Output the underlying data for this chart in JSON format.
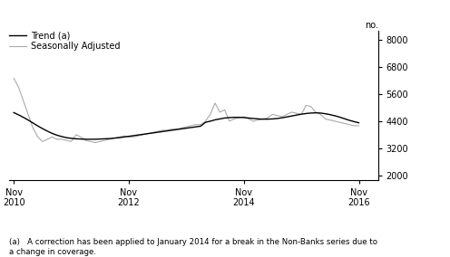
{
  "ylabel_right": "no.",
  "yticks": [
    2000,
    3200,
    4400,
    5600,
    6800,
    8000
  ],
  "ylim": [
    1800,
    8400
  ],
  "xtick_labels": [
    "Nov\n2010",
    "Nov\n2012",
    "Nov\n2014",
    "Nov\n2016"
  ],
  "xtick_positions": [
    0,
    24,
    48,
    72
  ],
  "xlim": [
    -1,
    76
  ],
  "footnote": "(a)   A correction has been applied to January 2014 for a break in the Non-Banks series due to\na change in coverage.",
  "legend_trend": "Trend (a)",
  "legend_seasonal": "Seasonally Adjusted",
  "trend_color": "#000000",
  "seasonal_color": "#aaaaaa",
  "background_color": "#ffffff",
  "trend_data": [
    4780,
    4680,
    4570,
    4450,
    4320,
    4190,
    4070,
    3960,
    3860,
    3780,
    3720,
    3670,
    3640,
    3620,
    3610,
    3600,
    3600,
    3600,
    3610,
    3620,
    3630,
    3650,
    3670,
    3700,
    3730,
    3760,
    3790,
    3820,
    3850,
    3880,
    3910,
    3940,
    3970,
    4000,
    4030,
    4060,
    4090,
    4120,
    4150,
    4180,
    4350,
    4400,
    4460,
    4500,
    4540,
    4560,
    4570,
    4570,
    4560,
    4540,
    4520,
    4500,
    4490,
    4490,
    4500,
    4520,
    4550,
    4590,
    4630,
    4670,
    4710,
    4740,
    4760,
    4770,
    4760,
    4730,
    4690,
    4640,
    4580,
    4510,
    4440,
    4380,
    4330
  ],
  "seasonal_data": [
    6300,
    5900,
    5300,
    4700,
    4100,
    3700,
    3500,
    3600,
    3700,
    3600,
    3600,
    3550,
    3500,
    3800,
    3700,
    3550,
    3500,
    3450,
    3500,
    3550,
    3600,
    3650,
    3700,
    3750,
    3700,
    3700,
    3750,
    3800,
    3850,
    3900,
    3950,
    4000,
    4000,
    4050,
    4050,
    4100,
    4150,
    4200,
    4250,
    4250,
    4400,
    4700,
    5200,
    4800,
    4900,
    4400,
    4500,
    4550,
    4600,
    4500,
    4400,
    4450,
    4500,
    4550,
    4700,
    4650,
    4600,
    4700,
    4800,
    4750,
    4700,
    5100,
    5050,
    4800,
    4700,
    4500,
    4450,
    4400,
    4350,
    4300,
    4250,
    4200,
    4200
  ]
}
